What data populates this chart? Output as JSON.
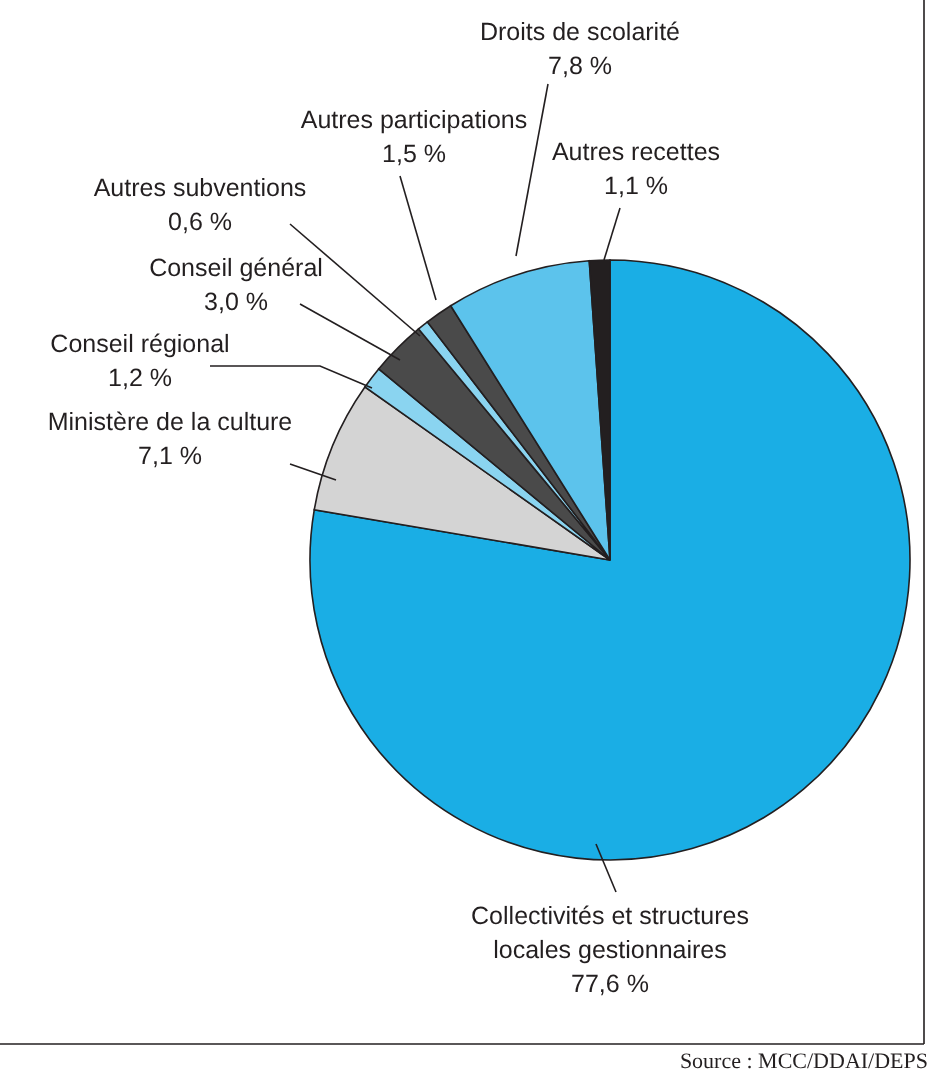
{
  "chart_data": {
    "type": "pie",
    "categories": [
      "Collectivités et structures locales gestionnaires",
      "Ministère de la culture",
      "Conseil régional",
      "Conseil général",
      "Autres subventions",
      "Autres participations",
      "Droits de scolarité",
      "Autres recettes"
    ],
    "values": [
      77.6,
      7.1,
      1.2,
      3.0,
      0.6,
      1.5,
      7.8,
      1.1
    ],
    "value_labels": [
      "77,6 %",
      "7,1 %",
      "1,2 %",
      "3,0 %",
      "0,6 %",
      "1,5 %",
      "7,8 %",
      "1,1 %"
    ],
    "colors": [
      "#1aaee5",
      "#d4d4d4",
      "#8ad4f0",
      "#4a4a4a",
      "#8ad4f0",
      "#4a4a4a",
      "#5cc3ec",
      "#231f20"
    ],
    "annotations": [
      "Source : MCC/DDAI/DEPS"
    ]
  }
}
